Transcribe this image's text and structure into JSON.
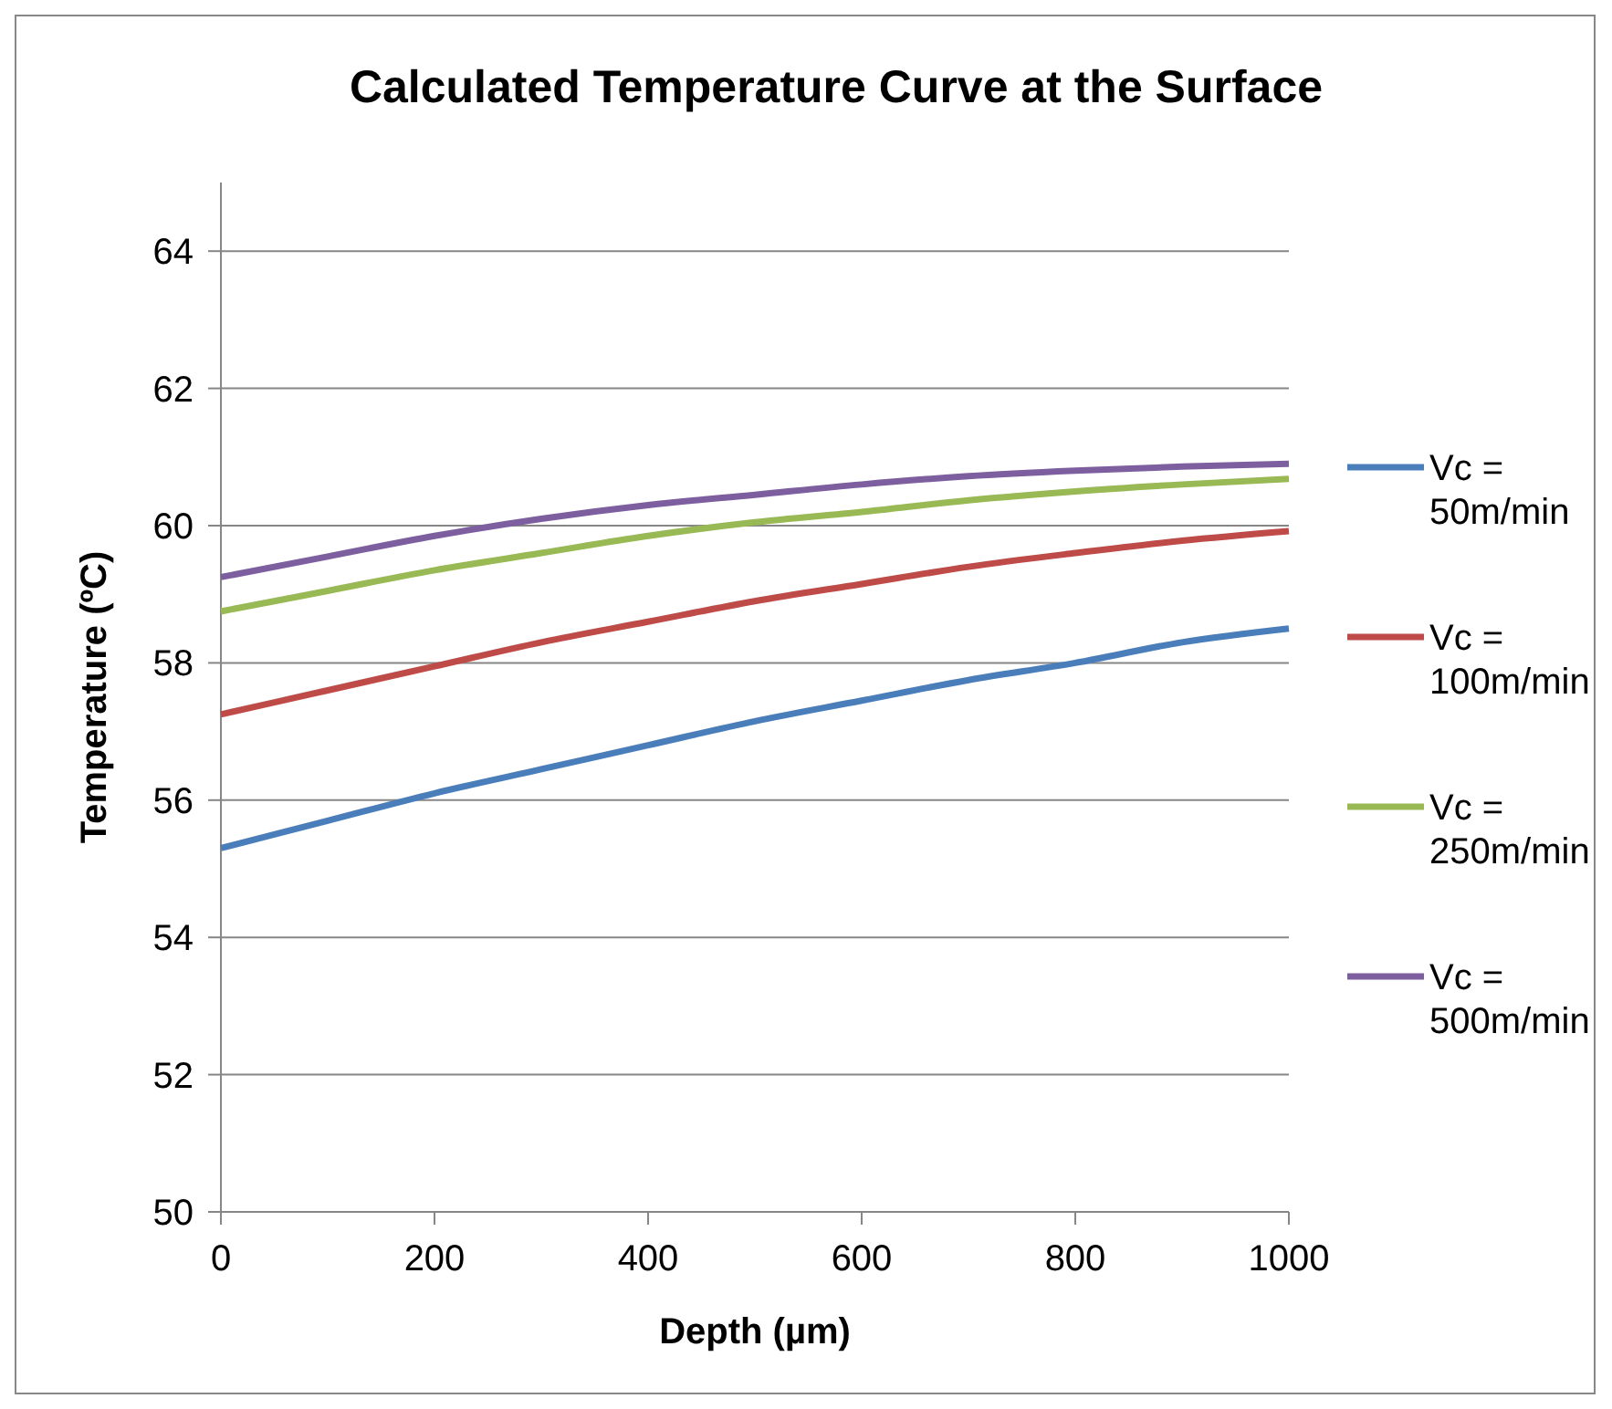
{
  "chart_data": {
    "type": "line",
    "title": "Calculated Temperature Curve at the Surface",
    "xlabel": "Depth (µm)",
    "ylabel": "Temperature (ºC)",
    "x": [
      0,
      100,
      200,
      300,
      400,
      500,
      600,
      700,
      800,
      900,
      1000
    ],
    "xlim": [
      0,
      1000
    ],
    "xticks": [
      0,
      200,
      400,
      600,
      800,
      1000
    ],
    "ylim": [
      50,
      65
    ],
    "yticks": [
      50,
      52,
      54,
      56,
      58,
      60,
      62,
      64
    ],
    "grid": "y",
    "legend": "right",
    "marker": "none",
    "line_style": "solid",
    "series": [
      {
        "name": "Vc = 50m/min",
        "color": "#4a7ebb",
        "values": [
          55.3,
          55.7,
          56.1,
          56.45,
          56.8,
          57.15,
          57.45,
          57.75,
          58.0,
          58.3,
          58.5
        ]
      },
      {
        "name": "Vc = 100m/min",
        "color": "#be4b48",
        "values": [
          57.25,
          57.6,
          57.95,
          58.3,
          58.6,
          58.9,
          59.15,
          59.4,
          59.6,
          59.78,
          59.92
        ]
      },
      {
        "name": "Vc = 250m/min",
        "color": "#98b954",
        "values": [
          58.75,
          59.05,
          59.35,
          59.6,
          59.85,
          60.05,
          60.2,
          60.37,
          60.5,
          60.6,
          60.68
        ]
      },
      {
        "name": "Vc = 500m/min",
        "color": "#7d5fa0",
        "values": [
          59.25,
          59.55,
          59.85,
          60.1,
          60.3,
          60.45,
          60.6,
          60.72,
          60.8,
          60.86,
          60.9
        ]
      }
    ]
  }
}
